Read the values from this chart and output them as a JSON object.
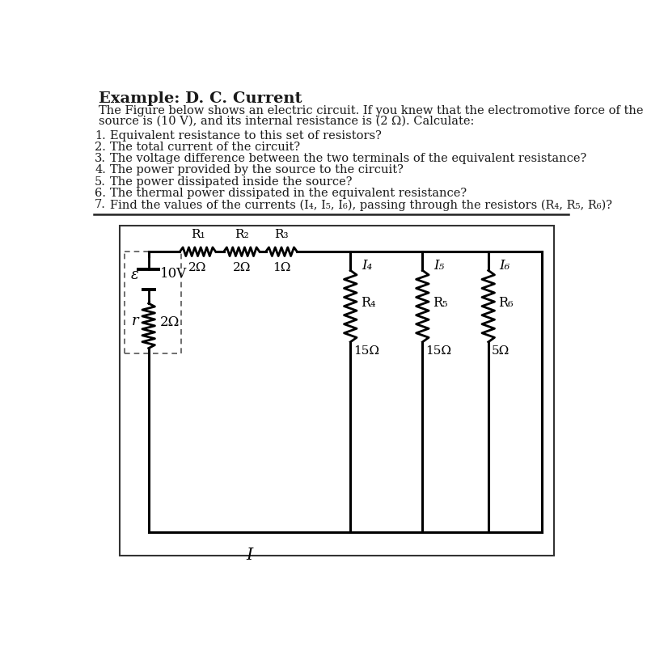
{
  "title": "Example: D. C. Current",
  "paragraph_line1": "The Figure below shows an electric circuit. If you knew that the electromotive force of the",
  "paragraph_line2": "source is (10 V), and its internal resistance is (2 Ω). Calculate:",
  "questions": [
    "Equivalent resistance to this set of resistors?",
    "The total current of the circuit?",
    "The voltage difference between the two terminals of the equivalent resistance?",
    "The power provided by the source to the circuit?",
    "The power dissipated inside the source?",
    "The thermal power dissipated in the equivalent resistance?",
    "Find the values of the currents (I₄, I₅, I₆), passing through the resistors (R₄, R₅, R₆)?"
  ],
  "bg_color": "#ffffff",
  "text_color": "#1a1a1a",
  "resistor_values": {
    "R1": "2Ω",
    "R2": "2Ω",
    "R3": "1Ω",
    "R4": "15Ω",
    "R5": "15Ω",
    "R6": "5Ω"
  },
  "emf_label": "ε",
  "emf_value": "10V",
  "internal_r_label": "r",
  "internal_r_value": "2Ω",
  "currents": [
    "I₄",
    "I₅",
    "I₆"
  ],
  "total_current": "I",
  "font_size_title": 14,
  "font_size_body": 10.5,
  "font_size_circuit": 11
}
